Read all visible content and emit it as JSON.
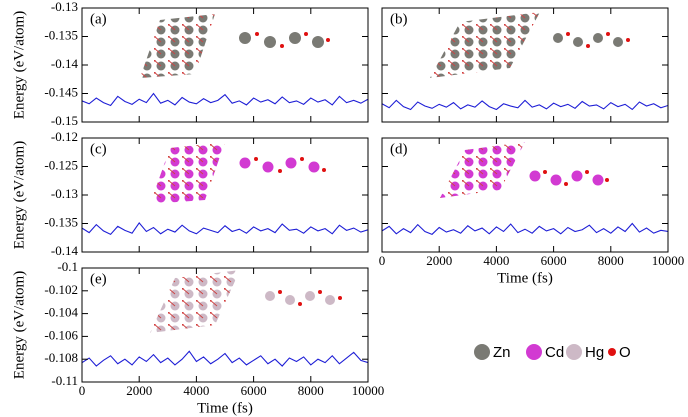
{
  "chart_data": [
    {
      "type": "line",
      "label": "(a)",
      "ylabel": "Energy (eV/atom)",
      "xlim": [
        0,
        10000
      ],
      "ylim": [
        -0.15,
        -0.13
      ],
      "xticks": [
        0,
        2000,
        4000,
        6000,
        8000,
        10000
      ],
      "yticks": [
        -0.15,
        -0.145,
        -0.14,
        -0.135,
        -0.13
      ],
      "x": [
        0,
        250,
        500,
        750,
        1000,
        1250,
        1500,
        1750,
        2000,
        2250,
        2500,
        2750,
        3000,
        3250,
        3500,
        3750,
        4000,
        4250,
        4500,
        4750,
        5000,
        5250,
        5500,
        5750,
        6000,
        6250,
        6500,
        6750,
        7000,
        7250,
        7500,
        7750,
        8000,
        8250,
        8500,
        8750,
        9000,
        9250,
        9500,
        9750,
        10000
      ],
      "series": [
        {
          "color": "#1f1fd6",
          "values": [
            -0.1463,
            -0.1468,
            -0.1458,
            -0.1466,
            -0.1471,
            -0.1455,
            -0.1464,
            -0.1469,
            -0.146,
            -0.1466,
            -0.145,
            -0.1467,
            -0.1462,
            -0.147,
            -0.1457,
            -0.1465,
            -0.1468,
            -0.1459,
            -0.1466,
            -0.1462,
            -0.1452,
            -0.1467,
            -0.1463,
            -0.147,
            -0.1458,
            -0.1465,
            -0.1461,
            -0.1468,
            -0.1456,
            -0.1466,
            -0.1463,
            -0.1469,
            -0.1458,
            -0.1465,
            -0.1461,
            -0.147,
            -0.1455,
            -0.1466,
            -0.1462,
            -0.1467,
            -0.146
          ]
        }
      ]
    },
    {
      "type": "line",
      "label": "(b)",
      "xlim": [
        0,
        10000
      ],
      "ylim": [
        -0.15,
        -0.13
      ],
      "xticks": [
        0,
        2000,
        4000,
        6000,
        8000,
        10000
      ],
      "yticks": [
        -0.15,
        -0.145,
        -0.14,
        -0.135,
        -0.13
      ],
      "x": [
        0,
        250,
        500,
        750,
        1000,
        1250,
        1500,
        1750,
        2000,
        2250,
        2500,
        2750,
        3000,
        3250,
        3500,
        3750,
        4000,
        4250,
        4500,
        4750,
        5000,
        5250,
        5500,
        5750,
        6000,
        6250,
        6500,
        6750,
        7000,
        7250,
        7500,
        7750,
        8000,
        8250,
        8500,
        8750,
        9000,
        9250,
        9500,
        9750,
        10000
      ],
      "series": [
        {
          "color": "#1f1fd6",
          "values": [
            -0.1468,
            -0.1475,
            -0.1462,
            -0.1473,
            -0.1478,
            -0.1465,
            -0.1472,
            -0.1476,
            -0.1469,
            -0.1474,
            -0.1466,
            -0.1477,
            -0.147,
            -0.1474,
            -0.1463,
            -0.1473,
            -0.1478,
            -0.1468,
            -0.1472,
            -0.1475,
            -0.1462,
            -0.1474,
            -0.147,
            -0.1477,
            -0.1467,
            -0.1473,
            -0.1469,
            -0.1476,
            -0.1464,
            -0.1472,
            -0.147,
            -0.1477,
            -0.1466,
            -0.1473,
            -0.1469,
            -0.1478,
            -0.1465,
            -0.1472,
            -0.1468,
            -0.1475,
            -0.1471
          ]
        }
      ]
    },
    {
      "type": "line",
      "label": "(c)",
      "ylabel": "Energy (eV/atom)",
      "xlim": [
        0,
        10000
      ],
      "ylim": [
        -0.14,
        -0.12
      ],
      "xticks": [
        0,
        2000,
        4000,
        6000,
        8000,
        10000
      ],
      "yticks": [
        -0.14,
        -0.135,
        -0.13,
        -0.125,
        -0.12
      ],
      "x": [
        0,
        250,
        500,
        750,
        1000,
        1250,
        1500,
        1750,
        2000,
        2250,
        2500,
        2750,
        3000,
        3250,
        3500,
        3750,
        4000,
        4250,
        4500,
        4750,
        5000,
        5250,
        5500,
        5750,
        6000,
        6250,
        6500,
        6750,
        7000,
        7250,
        7500,
        7750,
        8000,
        8250,
        8500,
        8750,
        9000,
        9250,
        9500,
        9750,
        10000
      ],
      "series": [
        {
          "color": "#1f1fd6",
          "values": [
            -0.1358,
            -0.1366,
            -0.1352,
            -0.1363,
            -0.1369,
            -0.1355,
            -0.1362,
            -0.1367,
            -0.1349,
            -0.1364,
            -0.1357,
            -0.1368,
            -0.136,
            -0.1365,
            -0.1353,
            -0.1363,
            -0.1368,
            -0.1358,
            -0.1362,
            -0.1366,
            -0.1354,
            -0.1364,
            -0.136,
            -0.1367,
            -0.1356,
            -0.1363,
            -0.1359,
            -0.1366,
            -0.1351,
            -0.1362,
            -0.136,
            -0.1367,
            -0.1356,
            -0.1363,
            -0.1359,
            -0.1368,
            -0.1353,
            -0.1362,
            -0.1358,
            -0.1365,
            -0.1361
          ]
        }
      ]
    },
    {
      "type": "line",
      "label": "(d)",
      "xlabel": "Time (fs)",
      "xlim": [
        0,
        10000
      ],
      "ylim": [
        -0.14,
        -0.12
      ],
      "xticks": [
        0,
        2000,
        4000,
        6000,
        8000,
        10000
      ],
      "yticks": [
        -0.14,
        -0.135,
        -0.13,
        -0.125,
        -0.12
      ],
      "x": [
        0,
        250,
        500,
        750,
        1000,
        1250,
        1500,
        1750,
        2000,
        2250,
        2500,
        2750,
        3000,
        3250,
        3500,
        3750,
        4000,
        4250,
        4500,
        4750,
        5000,
        5250,
        5500,
        5750,
        6000,
        6250,
        6500,
        6750,
        7000,
        7250,
        7500,
        7750,
        8000,
        8250,
        8500,
        8750,
        9000,
        9250,
        9500,
        9750,
        10000
      ],
      "series": [
        {
          "color": "#1f1fd6",
          "values": [
            -0.1363,
            -0.1355,
            -0.1368,
            -0.1359,
            -0.1366,
            -0.1352,
            -0.1364,
            -0.1369,
            -0.1357,
            -0.1365,
            -0.1361,
            -0.1367,
            -0.1354,
            -0.1363,
            -0.1358,
            -0.1368,
            -0.1356,
            -0.1364,
            -0.1351,
            -0.1366,
            -0.136,
            -0.1367,
            -0.1355,
            -0.1363,
            -0.1359,
            -0.1368,
            -0.1357,
            -0.1364,
            -0.1361,
            -0.1353,
            -0.1366,
            -0.1359,
            -0.1367,
            -0.1356,
            -0.1364,
            -0.135,
            -0.1365,
            -0.1358,
            -0.1367,
            -0.1362,
            -0.1364
          ]
        }
      ]
    },
    {
      "type": "line",
      "label": "(e)",
      "ylabel": "Energy (eV/atom)",
      "xlabel": "Time (fs)",
      "xlim": [
        0,
        10000
      ],
      "ylim": [
        -0.11,
        -0.1
      ],
      "xticks": [
        0,
        2000,
        4000,
        6000,
        8000,
        10000
      ],
      "yticks": [
        -0.11,
        -0.108,
        -0.106,
        -0.104,
        -0.102,
        -0.1
      ],
      "x": [
        0,
        250,
        500,
        750,
        1000,
        1250,
        1500,
        1750,
        2000,
        2250,
        2500,
        2750,
        3000,
        3250,
        3500,
        3750,
        4000,
        4250,
        4500,
        4750,
        5000,
        5250,
        5500,
        5750,
        6000,
        6250,
        6500,
        6750,
        7000,
        7250,
        7500,
        7750,
        8000,
        8250,
        8500,
        8750,
        9000,
        9250,
        9500,
        9750,
        10000
      ],
      "series": [
        {
          "color": "#1f1fd6",
          "values": [
            -0.1083,
            -0.1079,
            -0.1086,
            -0.1081,
            -0.1077,
            -0.1084,
            -0.108,
            -0.1085,
            -0.1078,
            -0.1082,
            -0.1076,
            -0.1083,
            -0.1079,
            -0.1085,
            -0.108,
            -0.1073,
            -0.1082,
            -0.1078,
            -0.1084,
            -0.108,
            -0.1075,
            -0.1083,
            -0.1079,
            -0.1085,
            -0.1081,
            -0.1077,
            -0.1084,
            -0.108,
            -0.1086,
            -0.1079,
            -0.1082,
            -0.1078,
            -0.1085,
            -0.108,
            -0.1083,
            -0.1077,
            -0.1084,
            -0.1079,
            -0.1074,
            -0.1081,
            -0.1083
          ]
        }
      ]
    }
  ],
  "legend": {
    "items": [
      {
        "label": "Zn",
        "color": "#7a7a74"
      },
      {
        "label": "Cd",
        "color": "#d23ad2"
      },
      {
        "label": "Hg",
        "color": "#cdb9c6"
      },
      {
        "label": "O",
        "color": "#e01010"
      }
    ]
  }
}
